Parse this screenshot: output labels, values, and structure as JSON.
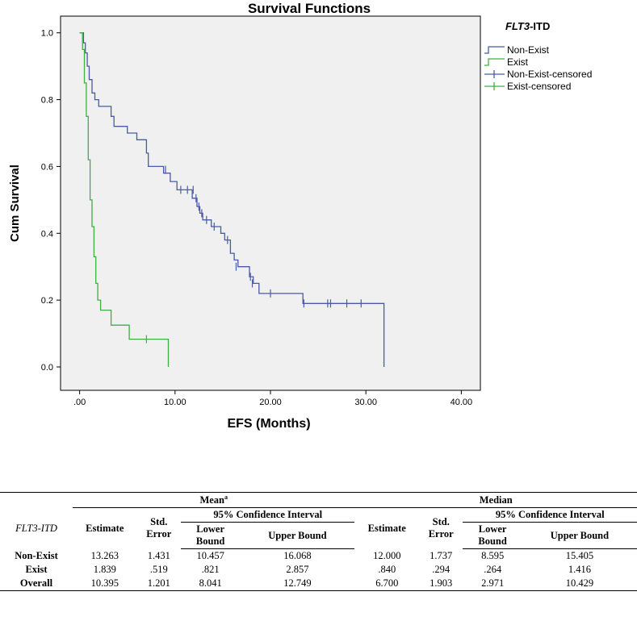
{
  "chart_data": {
    "type": "line",
    "subtype": "kaplan-meier-step",
    "title": "Survival Functions",
    "xlabel": "EFS (Months)",
    "ylabel": "Cum Survival",
    "xlim": [
      -2,
      42
    ],
    "ylim": [
      -0.07,
      1.05
    ],
    "xticks": [
      0,
      10,
      20,
      30,
      40
    ],
    "xtick_labels": [
      ".00",
      "10.00",
      "20.00",
      "30.00",
      "40.00"
    ],
    "yticks": [
      0,
      0.2,
      0.4,
      0.6,
      0.8,
      1.0
    ],
    "ytick_labels": [
      "0.0",
      "0.2",
      "0.4",
      "0.6",
      "0.8",
      "1.0"
    ],
    "legend_title_italic": "FLT3",
    "legend_title_rest": "-ITD",
    "legend": [
      "Non-Exist",
      "Exist",
      "Non-Exist-censored",
      "Exist-censored"
    ],
    "series": [
      {
        "name": "Non-Exist",
        "color": "#4a5aa8",
        "points": [
          [
            0,
            1.0
          ],
          [
            0.4,
            1.0
          ],
          [
            0.4,
            0.97
          ],
          [
            0.6,
            0.97
          ],
          [
            0.6,
            0.94
          ],
          [
            0.8,
            0.94
          ],
          [
            0.8,
            0.9
          ],
          [
            1.0,
            0.9
          ],
          [
            1.0,
            0.86
          ],
          [
            1.3,
            0.86
          ],
          [
            1.3,
            0.82
          ],
          [
            1.6,
            0.82
          ],
          [
            1.6,
            0.8
          ],
          [
            2.0,
            0.8
          ],
          [
            2.0,
            0.78
          ],
          [
            3.3,
            0.78
          ],
          [
            3.3,
            0.75
          ],
          [
            3.6,
            0.75
          ],
          [
            3.6,
            0.72
          ],
          [
            5.0,
            0.72
          ],
          [
            5.0,
            0.7
          ],
          [
            6.0,
            0.7
          ],
          [
            6.0,
            0.68
          ],
          [
            7.0,
            0.68
          ],
          [
            7.0,
            0.64
          ],
          [
            7.2,
            0.64
          ],
          [
            7.2,
            0.6
          ],
          [
            8.8,
            0.6
          ],
          [
            8.8,
            0.58
          ],
          [
            9.5,
            0.58
          ],
          [
            9.5,
            0.555
          ],
          [
            10.2,
            0.555
          ],
          [
            10.2,
            0.53
          ],
          [
            11.8,
            0.53
          ],
          [
            11.8,
            0.505
          ],
          [
            12.3,
            0.505
          ],
          [
            12.3,
            0.48
          ],
          [
            12.6,
            0.48
          ],
          [
            12.6,
            0.46
          ],
          [
            12.9,
            0.46
          ],
          [
            12.9,
            0.44
          ],
          [
            13.8,
            0.44
          ],
          [
            13.8,
            0.42
          ],
          [
            14.8,
            0.42
          ],
          [
            14.8,
            0.4
          ],
          [
            15.2,
            0.4
          ],
          [
            15.2,
            0.38
          ],
          [
            15.8,
            0.38
          ],
          [
            15.8,
            0.34
          ],
          [
            16.2,
            0.34
          ],
          [
            16.2,
            0.32
          ],
          [
            16.6,
            0.32
          ],
          [
            16.6,
            0.3
          ],
          [
            17.8,
            0.3
          ],
          [
            17.8,
            0.27
          ],
          [
            18.2,
            0.27
          ],
          [
            18.2,
            0.25
          ],
          [
            18.8,
            0.25
          ],
          [
            18.8,
            0.22
          ],
          [
            23.4,
            0.22
          ],
          [
            23.4,
            0.19
          ],
          [
            31.9,
            0.19
          ],
          [
            31.9,
            0.0
          ]
        ],
        "censored": [
          [
            9.0,
            0.59
          ],
          [
            10.6,
            0.53
          ],
          [
            11.3,
            0.53
          ],
          [
            11.9,
            0.53
          ],
          [
            12.2,
            0.505
          ],
          [
            12.5,
            0.48
          ],
          [
            12.8,
            0.46
          ],
          [
            13.3,
            0.44
          ],
          [
            14.1,
            0.42
          ],
          [
            15.5,
            0.38
          ],
          [
            16.4,
            0.3
          ],
          [
            17.9,
            0.27
          ],
          [
            18.1,
            0.25
          ],
          [
            20.0,
            0.22
          ],
          [
            23.5,
            0.19
          ],
          [
            26.0,
            0.19
          ],
          [
            26.3,
            0.19
          ],
          [
            28.0,
            0.19
          ],
          [
            29.5,
            0.19
          ]
        ]
      },
      {
        "name": "Exist",
        "color": "#3cb043",
        "points": [
          [
            0,
            1.0
          ],
          [
            0.3,
            1.0
          ],
          [
            0.3,
            0.95
          ],
          [
            0.5,
            0.95
          ],
          [
            0.5,
            0.85
          ],
          [
            0.7,
            0.85
          ],
          [
            0.7,
            0.75
          ],
          [
            0.9,
            0.75
          ],
          [
            0.9,
            0.62
          ],
          [
            1.1,
            0.62
          ],
          [
            1.1,
            0.5
          ],
          [
            1.3,
            0.5
          ],
          [
            1.3,
            0.42
          ],
          [
            1.5,
            0.42
          ],
          [
            1.5,
            0.33
          ],
          [
            1.7,
            0.33
          ],
          [
            1.7,
            0.25
          ],
          [
            1.9,
            0.25
          ],
          [
            1.9,
            0.2
          ],
          [
            2.2,
            0.2
          ],
          [
            2.2,
            0.17
          ],
          [
            3.3,
            0.17
          ],
          [
            3.3,
            0.125
          ],
          [
            5.2,
            0.125
          ],
          [
            5.2,
            0.083
          ],
          [
            9.3,
            0.083
          ],
          [
            9.3,
            0.0
          ]
        ],
        "censored": [
          [
            7.0,
            0.083
          ]
        ]
      }
    ]
  },
  "table": {
    "header_mean": "Mean",
    "header_mean_sup": "a",
    "header_median": "Median",
    "group_label_italic": "FLT3-ITD",
    "col_estimate": "Estimate",
    "col_std_error_line1": "Std.",
    "col_std_error_line2": "Error",
    "col_ci": "95% Confidence Interval",
    "col_lower_line1": "Lower",
    "col_lower_line2": "Bound",
    "col_upper": "Upper Bound",
    "rows": [
      {
        "label": "Non-Exist",
        "values": [
          "13.263",
          "1.431",
          "10.457",
          "16.068",
          "12.000",
          "1.737",
          "8.595",
          "15.405"
        ]
      },
      {
        "label": "Exist",
        "values": [
          "1.839",
          ".519",
          ".821",
          "2.857",
          ".840",
          ".294",
          ".264",
          "1.416"
        ]
      },
      {
        "label": "Overall",
        "values": [
          "10.395",
          "1.201",
          "8.041",
          "12.749",
          "6.700",
          "1.903",
          "2.971",
          "10.429"
        ]
      }
    ]
  }
}
